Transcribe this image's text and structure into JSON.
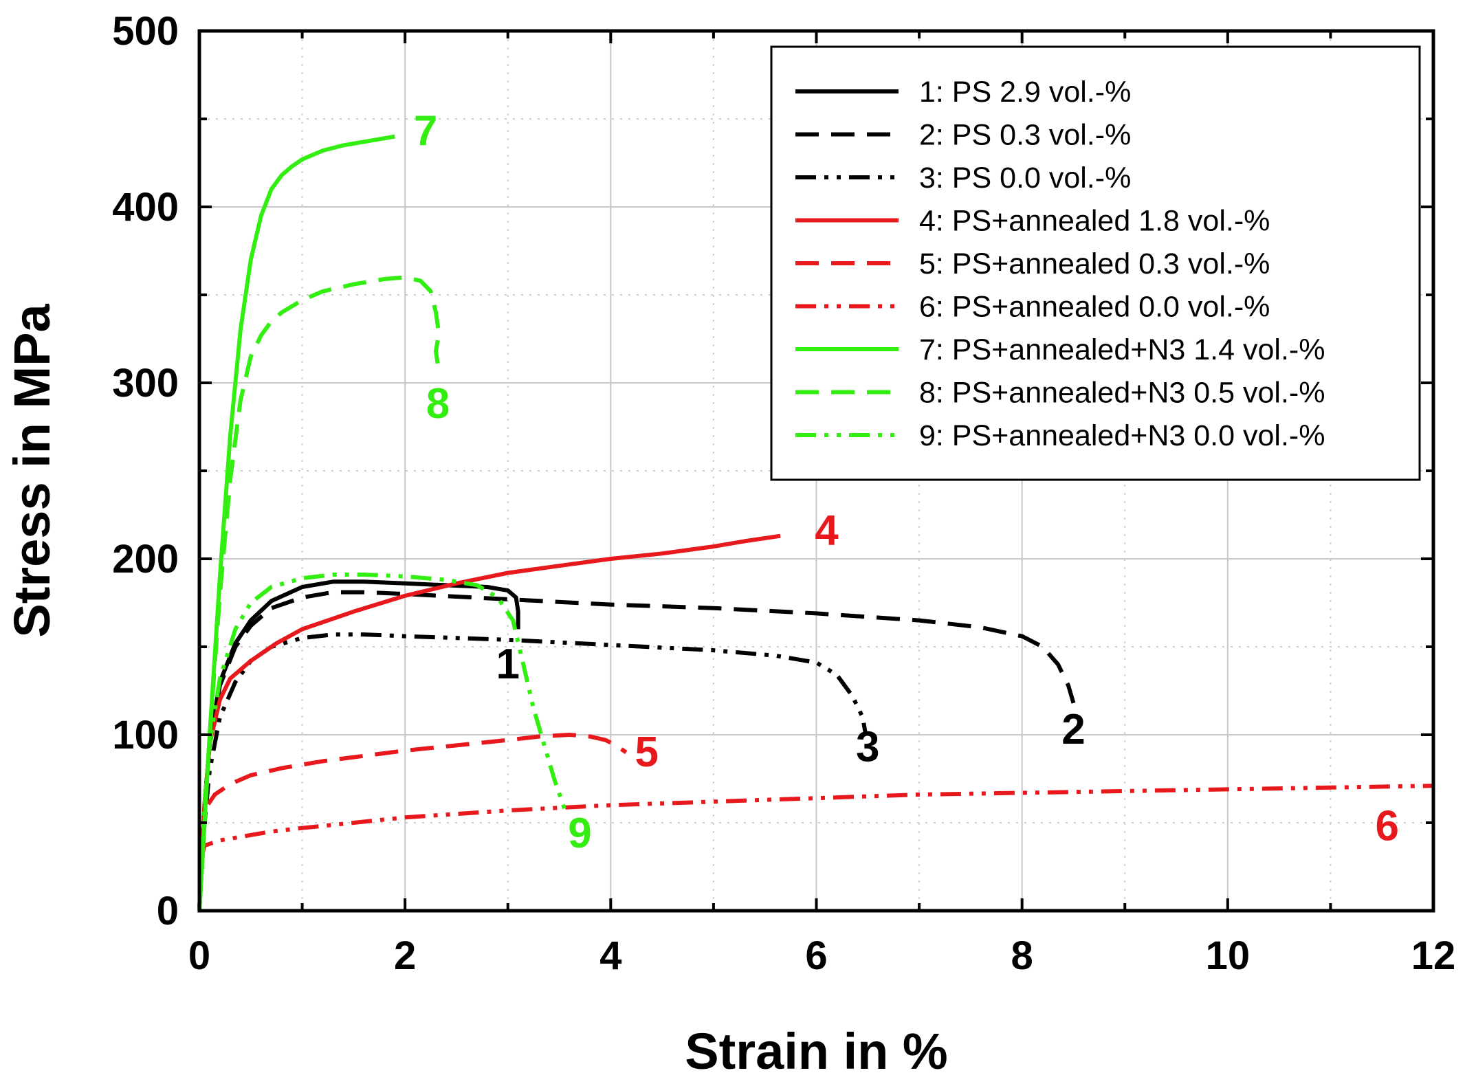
{
  "chart_data": {
    "type": "line",
    "title": "",
    "xlabel": "Strain in %",
    "ylabel": "Stress in MPa",
    "xlim": [
      0,
      12
    ],
    "ylim": [
      0,
      500
    ],
    "xticks": [
      "0",
      "2",
      "4",
      "6",
      "8",
      "10",
      "12"
    ],
    "yticks": [
      "0",
      "100",
      "200",
      "300",
      "400",
      "500"
    ],
    "grid": true,
    "legend_position": "top-right",
    "series": [
      {
        "name": "1: PS 2.9 vol.-%",
        "label": "1",
        "color": "#000000",
        "style": "solid",
        "x": [
          0,
          0.05,
          0.1,
          0.2,
          0.35,
          0.5,
          0.7,
          1.0,
          1.3,
          1.6,
          2.0,
          2.4,
          2.8,
          3.0,
          3.08,
          3.1,
          3.1
        ],
        "y": [
          0,
          60,
          95,
          130,
          152,
          165,
          176,
          184,
          187,
          187,
          186,
          185,
          184,
          182,
          178,
          170,
          160
        ]
      },
      {
        "name": "2: PS 0.3 vol.-%",
        "label": "2",
        "color": "#000000",
        "style": "dashed",
        "x": [
          0,
          0.05,
          0.1,
          0.2,
          0.35,
          0.5,
          0.7,
          1.0,
          1.3,
          1.6,
          2.0,
          3.0,
          4.0,
          5.0,
          6.0,
          7.0,
          7.6,
          8.0,
          8.2,
          8.35,
          8.45,
          8.5
        ],
        "y": [
          0,
          60,
          95,
          128,
          150,
          162,
          172,
          178,
          181,
          181,
          180,
          177,
          174,
          172,
          169,
          165,
          161,
          156,
          150,
          140,
          128,
          118
        ]
      },
      {
        "name": "3: PS 0.0 vol.-%",
        "label": "3",
        "color": "#000000",
        "style": "dashdotdot",
        "x": [
          0,
          0.05,
          0.1,
          0.2,
          0.35,
          0.5,
          0.7,
          1.0,
          1.3,
          1.6,
          2.0,
          3.0,
          4.0,
          5.0,
          5.6,
          6.0,
          6.2,
          6.35,
          6.45,
          6.48
        ],
        "y": [
          0,
          50,
          80,
          110,
          130,
          142,
          150,
          155,
          157,
          157,
          156,
          154,
          151,
          148,
          145,
          141,
          134,
          122,
          110,
          100
        ]
      },
      {
        "name": "4: PS+annealed 1.8 vol.-%",
        "label": "4",
        "color": "#e8191c",
        "style": "solid",
        "x": [
          0,
          0.05,
          0.1,
          0.2,
          0.3,
          0.5,
          0.75,
          1.0,
          1.5,
          2.0,
          2.5,
          3.0,
          3.5,
          4.0,
          4.5,
          5.0,
          5.3,
          5.65
        ],
        "y": [
          0,
          60,
          95,
          120,
          132,
          142,
          152,
          160,
          170,
          179,
          186,
          192,
          196,
          200,
          203,
          207,
          210,
          213
        ]
      },
      {
        "name": "5: PS+annealed 0.3 vol.-%",
        "label": "5",
        "color": "#e8191c",
        "style": "dashed",
        "x": [
          0,
          0.03,
          0.08,
          0.15,
          0.3,
          0.5,
          0.8,
          1.2,
          1.6,
          2.0,
          2.5,
          3.0,
          3.3,
          3.6,
          3.8,
          3.95,
          4.05,
          4.15
        ],
        "y": [
          0,
          45,
          60,
          66,
          72,
          77,
          81,
          85,
          88,
          91,
          94,
          97,
          99,
          100,
          99,
          97,
          94,
          90
        ]
      },
      {
        "name": "6: PS+annealed 0.0 vol.-%",
        "label": "6",
        "color": "#e8191c",
        "style": "dashdotdot",
        "x": [
          0,
          0.02,
          0.05,
          0.1,
          0.2,
          0.4,
          0.7,
          1.0,
          1.5,
          2.0,
          3.0,
          4.0,
          5.0,
          6.0,
          7.0,
          8.0,
          9.0,
          10.0,
          11.0,
          12.0
        ],
        "y": [
          0,
          30,
          37,
          38,
          40,
          42,
          45,
          47,
          50,
          53,
          57,
          60,
          62,
          64,
          66,
          67,
          68,
          69,
          70,
          71
        ]
      },
      {
        "name": "7: PS+annealed+N3 1.4 vol.-%",
        "label": "7",
        "color": "#33ee11",
        "style": "solid",
        "x": [
          0,
          0.1,
          0.2,
          0.3,
          0.4,
          0.5,
          0.6,
          0.7,
          0.8,
          0.9,
          1.0,
          1.2,
          1.4,
          1.6,
          1.8,
          1.9
        ],
        "y": [
          0,
          100,
          190,
          270,
          330,
          370,
          395,
          410,
          418,
          423,
          427,
          432,
          435,
          437,
          439,
          440
        ]
      },
      {
        "name": "8: PS+annealed+N3 0.5 vol.-%",
        "label": "8",
        "color": "#33ee11",
        "style": "dashed",
        "x": [
          0,
          0.1,
          0.2,
          0.3,
          0.4,
          0.5,
          0.6,
          0.7,
          0.8,
          1.0,
          1.2,
          1.5,
          1.8,
          2.0,
          2.15,
          2.25,
          2.3,
          2.33,
          2.3,
          2.32
        ],
        "y": [
          0,
          100,
          180,
          245,
          290,
          315,
          327,
          335,
          340,
          347,
          352,
          356,
          359,
          360,
          358,
          352,
          340,
          328,
          318,
          310
        ]
      },
      {
        "name": "9: PS+annealed+N3 0.0 vol.-%",
        "label": "9",
        "color": "#33ee11",
        "style": "dashdotdot",
        "x": [
          0,
          0.05,
          0.1,
          0.2,
          0.35,
          0.5,
          0.7,
          1.0,
          1.3,
          1.6,
          2.0,
          2.4,
          2.7,
          2.9,
          3.05,
          3.15,
          3.25,
          3.35,
          3.45,
          3.55
        ],
        "y": [
          0,
          60,
          95,
          132,
          160,
          175,
          184,
          189,
          191,
          191,
          190,
          188,
          185,
          178,
          165,
          140,
          115,
          95,
          75,
          58
        ]
      }
    ],
    "curve_labels": [
      {
        "text": "1",
        "color": "#000000",
        "x": 3.0,
        "y": 132
      },
      {
        "text": "2",
        "color": "#000000",
        "x": 8.5,
        "y": 95
      },
      {
        "text": "3",
        "color": "#000000",
        "x": 6.5,
        "y": 85
      },
      {
        "text": "4",
        "color": "#e8191c",
        "x": 6.1,
        "y": 208
      },
      {
        "text": "5",
        "color": "#e8191c",
        "x": 4.35,
        "y": 82
      },
      {
        "text": "6",
        "color": "#e8191c",
        "x": 11.55,
        "y": 40
      },
      {
        "text": "7",
        "color": "#33ee11",
        "x": 2.2,
        "y": 435
      },
      {
        "text": "8",
        "color": "#33ee11",
        "x": 2.32,
        "y": 280
      },
      {
        "text": "9",
        "color": "#33ee11",
        "x": 3.7,
        "y": 36
      }
    ]
  }
}
